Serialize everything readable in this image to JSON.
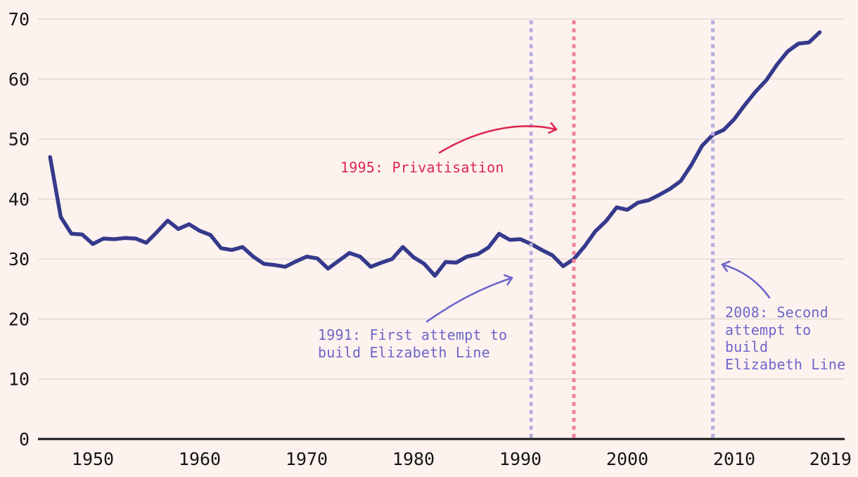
{
  "page": {
    "background": "#fdf2ee"
  },
  "chart_data": {
    "type": "line",
    "x": [
      1946,
      1947,
      1948,
      1949,
      1950,
      1951,
      1952,
      1953,
      1954,
      1955,
      1956,
      1957,
      1958,
      1959,
      1960,
      1961,
      1962,
      1963,
      1964,
      1965,
      1966,
      1967,
      1968,
      1969,
      1970,
      1971,
      1972,
      1973,
      1974,
      1975,
      1976,
      1977,
      1978,
      1979,
      1980,
      1981,
      1982,
      1983,
      1984,
      1985,
      1986,
      1987,
      1988,
      1989,
      1990,
      1991,
      1992,
      1993,
      1994,
      1995,
      1996,
      1997,
      1998,
      1999,
      2000,
      2001,
      2002,
      2003,
      2004,
      2005,
      2006,
      2007,
      2008,
      2009,
      2010,
      2011,
      2012,
      2013,
      2014,
      2015,
      2016,
      2017,
      2018
    ],
    "values": [
      47.0,
      37.0,
      34.2,
      34.1,
      32.5,
      33.4,
      33.3,
      33.5,
      33.4,
      32.7,
      34.5,
      36.4,
      35.0,
      35.8,
      34.7,
      34.0,
      31.8,
      31.5,
      32.0,
      30.4,
      29.2,
      29.0,
      28.7,
      29.6,
      30.4,
      30.1,
      28.4,
      29.7,
      31.0,
      30.4,
      28.7,
      29.4,
      30.0,
      32.0,
      30.3,
      29.2,
      27.2,
      29.5,
      29.4,
      30.4,
      30.8,
      31.9,
      34.2,
      33.2,
      33.3,
      32.5,
      31.5,
      30.6,
      28.8,
      30.0,
      32.1,
      34.6,
      36.3,
      38.6,
      38.2,
      39.4,
      39.8,
      40.7,
      41.7,
      43.0,
      45.7,
      48.9,
      50.7,
      51.5,
      53.3,
      55.7,
      57.9,
      59.8,
      62.4,
      64.6,
      65.9,
      66.1,
      67.8
    ],
    "ylim": [
      0,
      70
    ],
    "xlim": [
      1946,
      2019
    ],
    "yticks": [
      0,
      10,
      20,
      30,
      40,
      50,
      60,
      70
    ],
    "xticks": [
      1950,
      1960,
      1970,
      1980,
      1990,
      2000,
      2010,
      2019
    ],
    "grid": true,
    "legend": "none",
    "colors": {
      "line": "#363a8c",
      "background": "#fdf2ee",
      "gridline": "#e2dad7",
      "axis": "#161616",
      "tick_text": "#161616"
    },
    "events": [
      {
        "year": 1991,
        "line_color": "#b5afe0",
        "label_color": "#6e66c9",
        "label": "1991: First attempt to\nbuild Elizabeth Line"
      },
      {
        "year": 1995,
        "line_color": "#ef8099",
        "label_color": "#dc2850",
        "label": "1995: Privatisation"
      },
      {
        "year": 2008,
        "line_color": "#b5afe0",
        "label_color": "#6e66c9",
        "label": "2008: Second\nattempt to\nbuild\nElizabeth Line"
      }
    ]
  }
}
